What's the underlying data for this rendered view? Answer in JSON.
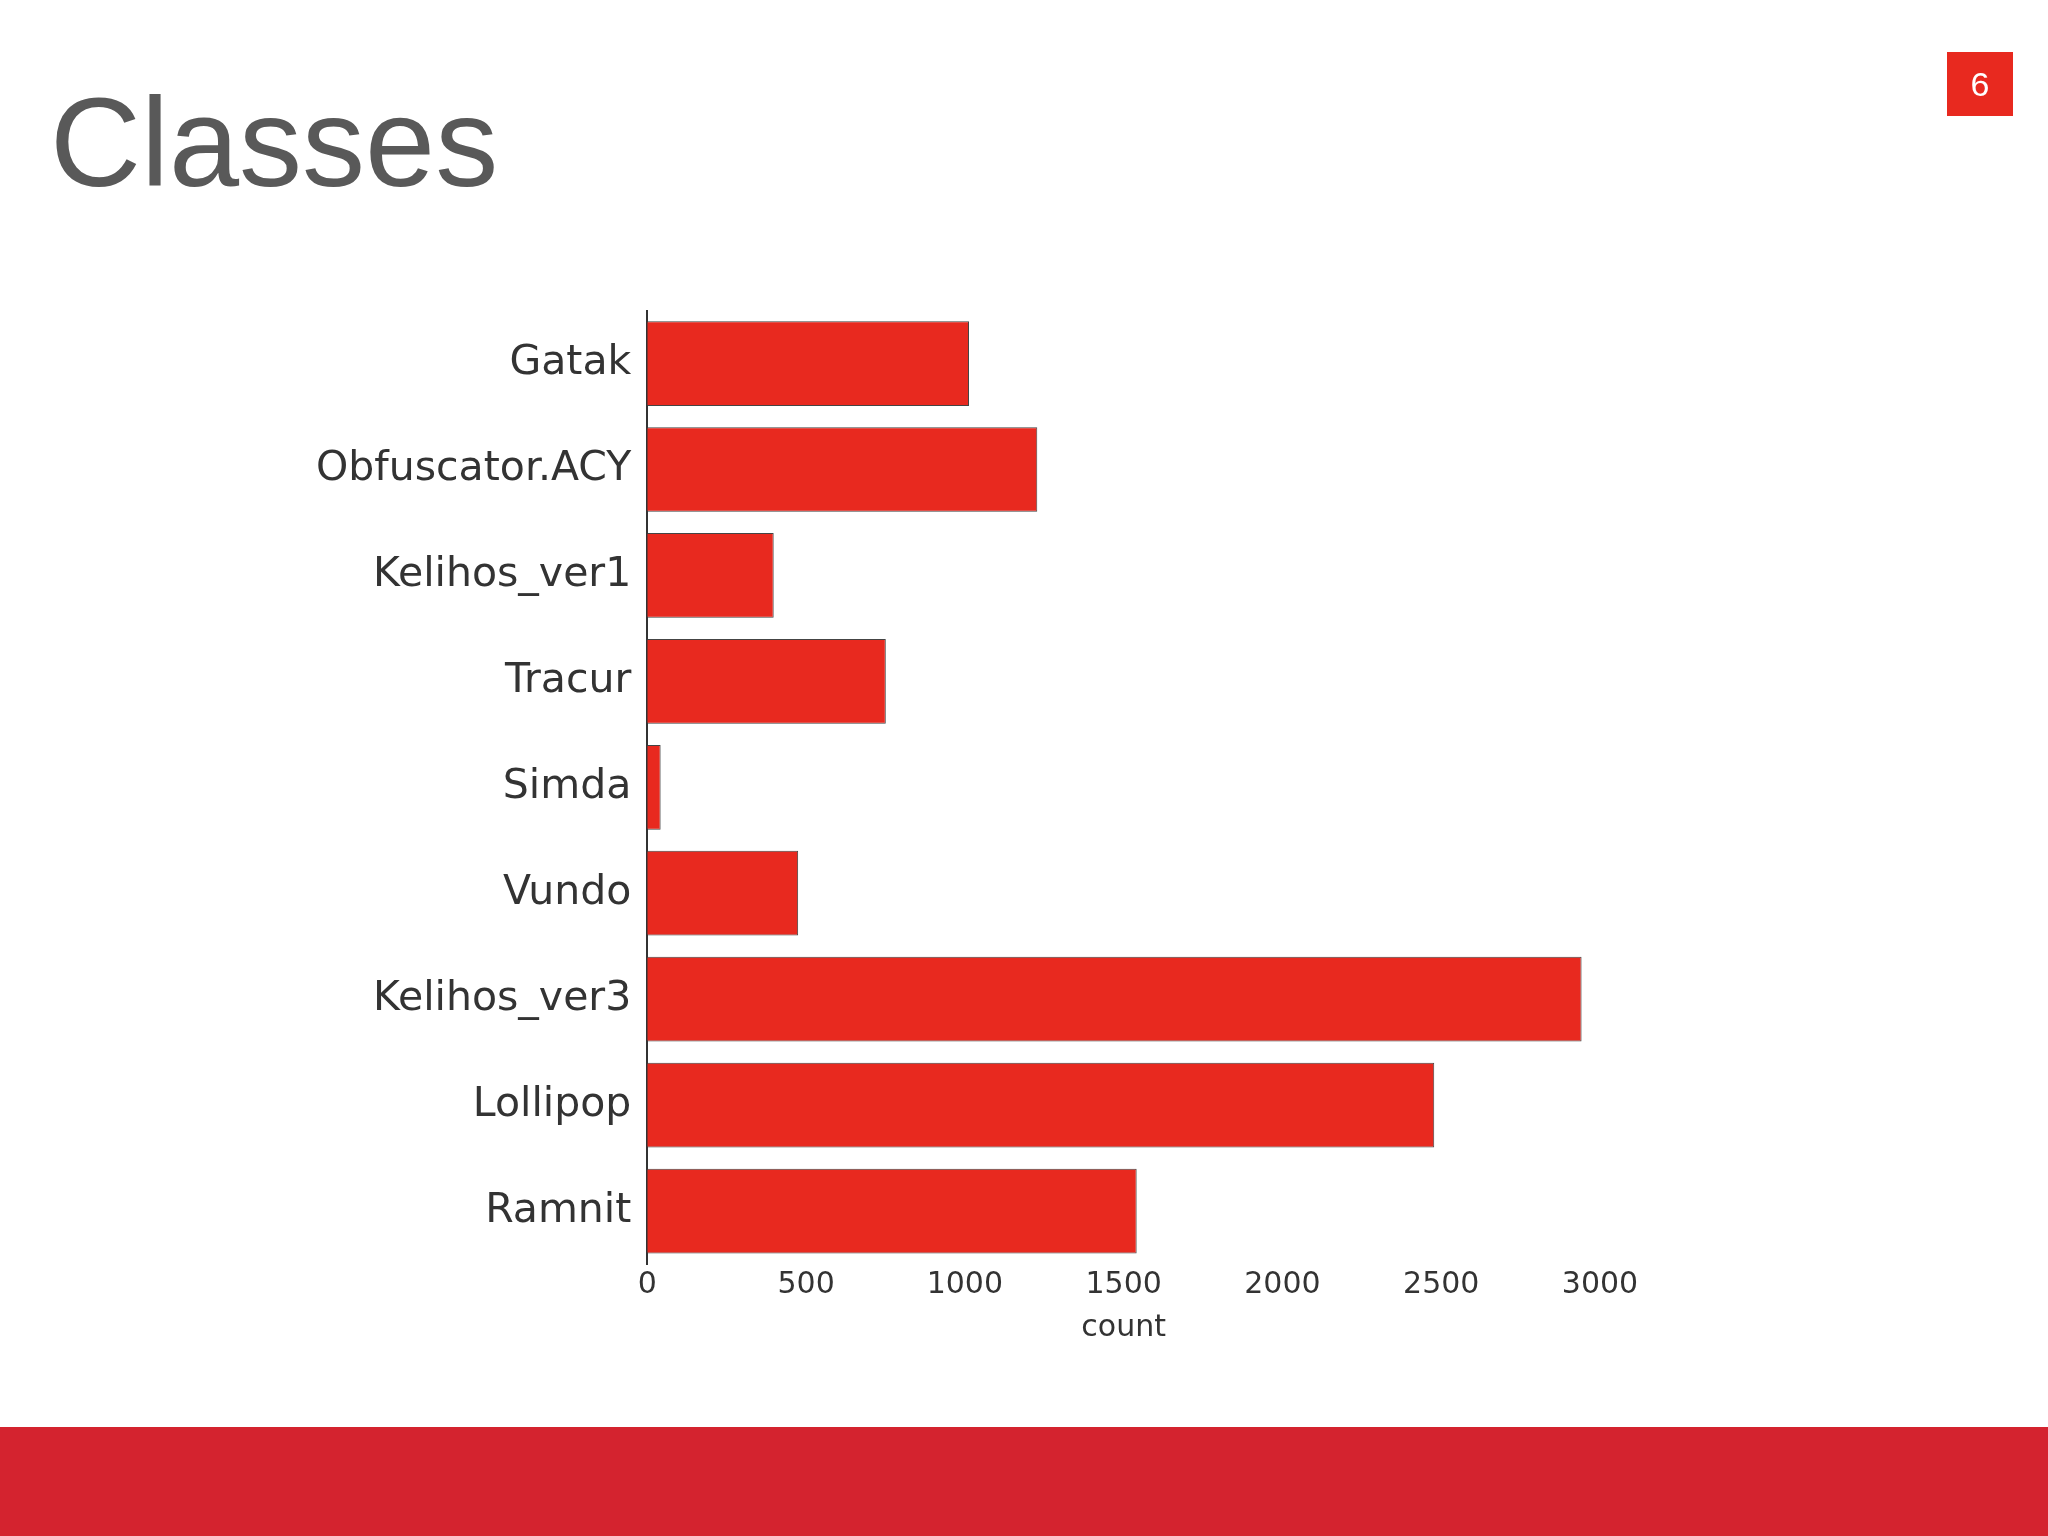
{
  "chart_data": {
    "type": "bar",
    "title": "Classes",
    "orientation": "horizontal",
    "xlabel": "count",
    "categories": [
      "Gatak",
      "Obfuscator.ACY",
      "Kelihos_ver1",
      "Tracur",
      "Simda",
      "Vundo",
      "Kelihos_ver3",
      "Lollipop",
      "Ramnit"
    ],
    "values": [
      1013,
      1228,
      398,
      751,
      42,
      475,
      2942,
      2478,
      1541
    ],
    "color": "#e8291f",
    "xlim": [
      0,
      3000
    ],
    "xticks": [
      0,
      500,
      1000,
      1500,
      2000,
      2500,
      3000
    ],
    "annotations": [
      "6"
    ]
  }
}
